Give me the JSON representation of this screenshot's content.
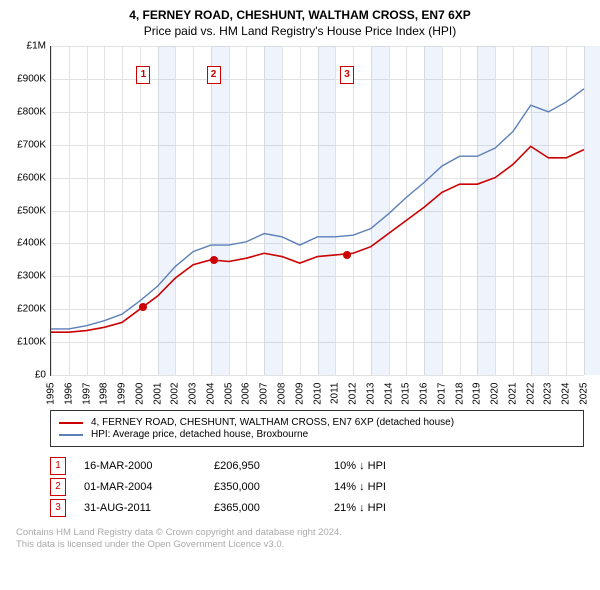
{
  "header": {
    "title": "4, FERNEY ROAD, CHESHUNT, WALTHAM CROSS, EN7 6XP",
    "subtitle": "Price paid vs. HM Land Registry's House Price Index (HPI)"
  },
  "chart": {
    "type": "line",
    "x": {
      "min": 1995,
      "max": 2025,
      "step": 1
    },
    "y": {
      "min": 0,
      "max": 1000000,
      "step": 100000,
      "labels": [
        "£0",
        "£100K",
        "£200K",
        "£300K",
        "£400K",
        "£500K",
        "£600K",
        "£700K",
        "£800K",
        "£900K",
        "£1M"
      ]
    },
    "background_color": "#ffffff",
    "grid_color": "#e2e2e2",
    "shaded_years": [
      2001,
      2004,
      2007,
      2010,
      2013,
      2016,
      2019,
      2022,
      2025
    ],
    "shade_color": "rgba(100,150,230,0.10)",
    "series": {
      "property": {
        "color": "#cc0000",
        "line_width": 1.6,
        "legend": "4, FERNEY ROAD, CHESHUNT, WALTHAM CROSS, EN7 6XP (detached house)",
        "points": [
          [
            1995,
            130000
          ],
          [
            1996,
            130000
          ],
          [
            1997,
            135000
          ],
          [
            1998,
            145000
          ],
          [
            1999,
            160000
          ],
          [
            2000,
            200000
          ],
          [
            2001,
            240000
          ],
          [
            2002,
            295000
          ],
          [
            2003,
            335000
          ],
          [
            2004,
            350000
          ],
          [
            2005,
            345000
          ],
          [
            2006,
            355000
          ],
          [
            2007,
            370000
          ],
          [
            2008,
            360000
          ],
          [
            2009,
            340000
          ],
          [
            2010,
            360000
          ],
          [
            2011,
            365000
          ],
          [
            2012,
            370000
          ],
          [
            2013,
            390000
          ],
          [
            2014,
            430000
          ],
          [
            2015,
            470000
          ],
          [
            2016,
            510000
          ],
          [
            2017,
            555000
          ],
          [
            2018,
            580000
          ],
          [
            2019,
            580000
          ],
          [
            2020,
            600000
          ],
          [
            2021,
            640000
          ],
          [
            2022,
            695000
          ],
          [
            2023,
            660000
          ],
          [
            2024,
            660000
          ],
          [
            2025,
            685000
          ]
        ]
      },
      "hpi": {
        "color": "#5b7fb8",
        "line_width": 1.4,
        "legend": "HPI: Average price, detached house, Broxbourne",
        "points": [
          [
            1995,
            140000
          ],
          [
            1996,
            140000
          ],
          [
            1997,
            150000
          ],
          [
            1998,
            165000
          ],
          [
            1999,
            185000
          ],
          [
            2000,
            225000
          ],
          [
            2001,
            270000
          ],
          [
            2002,
            330000
          ],
          [
            2003,
            375000
          ],
          [
            2004,
            395000
          ],
          [
            2005,
            395000
          ],
          [
            2006,
            405000
          ],
          [
            2007,
            430000
          ],
          [
            2008,
            420000
          ],
          [
            2009,
            395000
          ],
          [
            2010,
            420000
          ],
          [
            2011,
            420000
          ],
          [
            2012,
            425000
          ],
          [
            2013,
            445000
          ],
          [
            2014,
            490000
          ],
          [
            2015,
            540000
          ],
          [
            2016,
            585000
          ],
          [
            2017,
            635000
          ],
          [
            2018,
            665000
          ],
          [
            2019,
            665000
          ],
          [
            2020,
            690000
          ],
          [
            2021,
            740000
          ],
          [
            2022,
            820000
          ],
          [
            2023,
            800000
          ],
          [
            2024,
            830000
          ],
          [
            2025,
            870000
          ]
        ]
      }
    },
    "event_markers": {
      "color": "#cc0000",
      "y_offset_pct": 6
    },
    "event_dots": {
      "color": "#cc0000",
      "radius": 4
    }
  },
  "events": [
    {
      "n": "1",
      "year": 2000.2,
      "price_y": 206950,
      "date": "16-MAR-2000",
      "price": "£206,950",
      "delta": "10% ↓ HPI"
    },
    {
      "n": "2",
      "year": 2004.15,
      "price_y": 350000,
      "date": "01-MAR-2004",
      "price": "£350,000",
      "delta": "14% ↓ HPI"
    },
    {
      "n": "3",
      "year": 2011.66,
      "price_y": 365000,
      "date": "31-AUG-2011",
      "price": "£365,000",
      "delta": "21% ↓ HPI"
    }
  ],
  "footer": {
    "line1": "Contains HM Land Registry data © Crown copyright and database right 2024.",
    "line2": "This data is licensed under the Open Government Licence v3.0."
  }
}
